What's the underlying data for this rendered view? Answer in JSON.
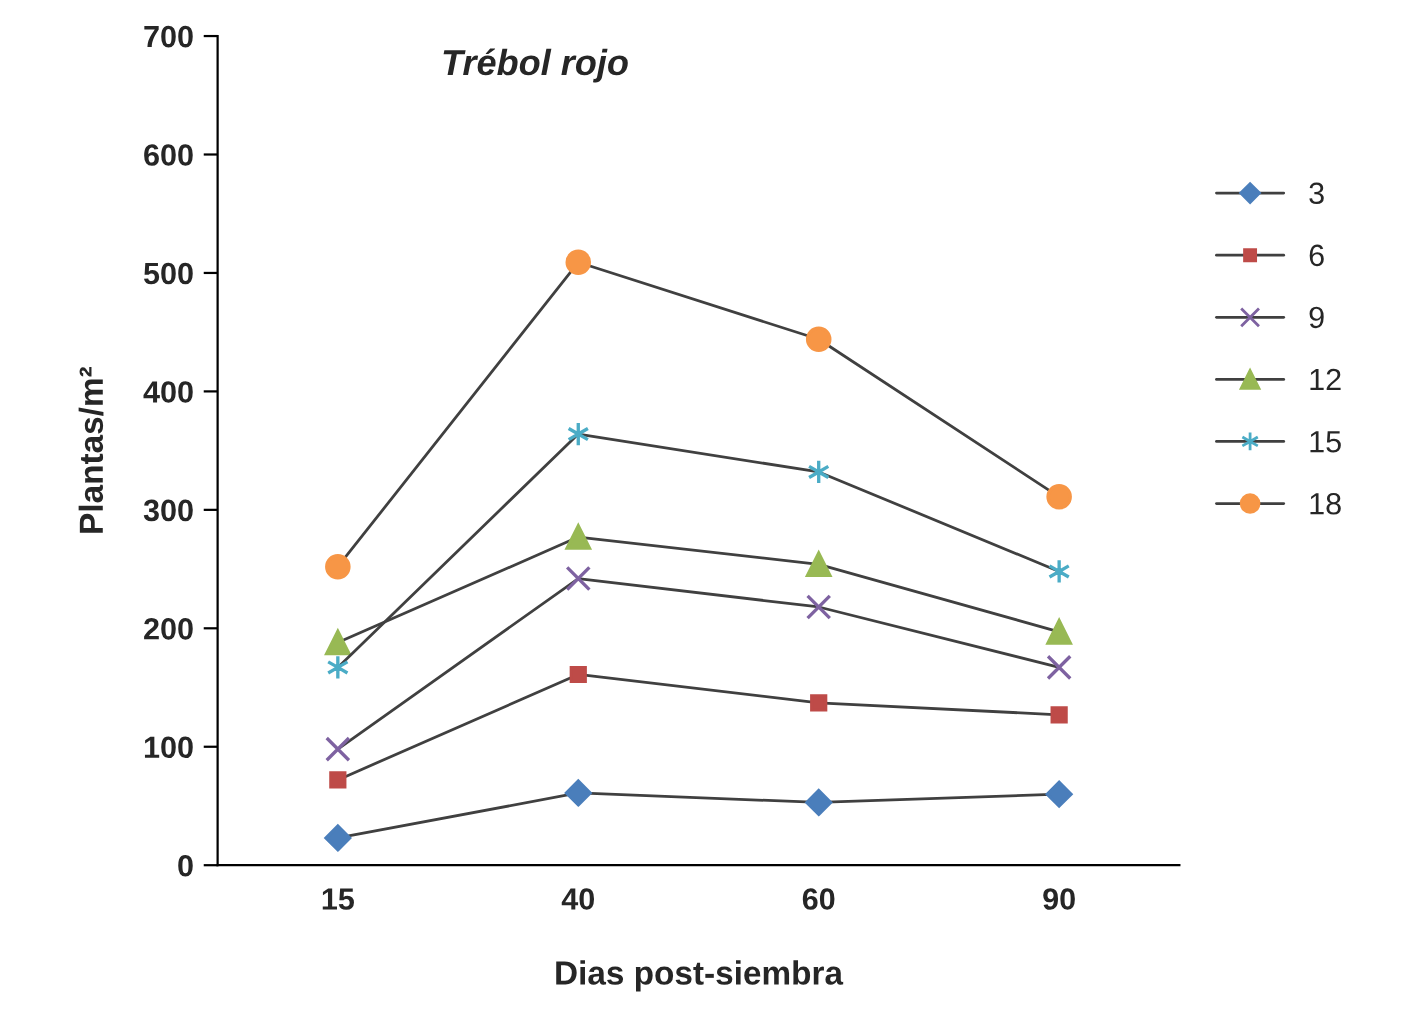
{
  "chart_data": {
    "type": "line",
    "title": "Trébol rojo",
    "xlabel": "Dias post-siembra",
    "ylabel": "Plantas/m²",
    "categories": [
      "15",
      "40",
      "60",
      "90"
    ],
    "series": [
      {
        "name": "3",
        "color": "#4a7ebb",
        "marker": "diamond",
        "values": [
          23,
          61,
          53,
          60
        ]
      },
      {
        "name": "6",
        "color": "#be4b48",
        "marker": "square",
        "values": [
          72,
          161,
          137,
          127
        ]
      },
      {
        "name": "9",
        "color": "#7e62a1",
        "marker": "cross",
        "values": [
          98,
          242,
          218,
          167
        ]
      },
      {
        "name": "12",
        "color": "#98b954",
        "marker": "triangle",
        "values": [
          188,
          277,
          254,
          197
        ]
      },
      {
        "name": "15",
        "color": "#4bacc6",
        "marker": "cross",
        "values": [
          167,
          364,
          332,
          248
        ]
      },
      {
        "name": "18",
        "color": "#f79646",
        "marker": "circle",
        "values": [
          252,
          509,
          444,
          311
        ]
      }
    ],
    "ylim": [
      0,
      700
    ],
    "yticks": [
      0,
      100,
      200,
      300,
      400,
      500,
      600,
      700
    ],
    "grid": false,
    "legend": "right",
    "line_style": "solid"
  }
}
